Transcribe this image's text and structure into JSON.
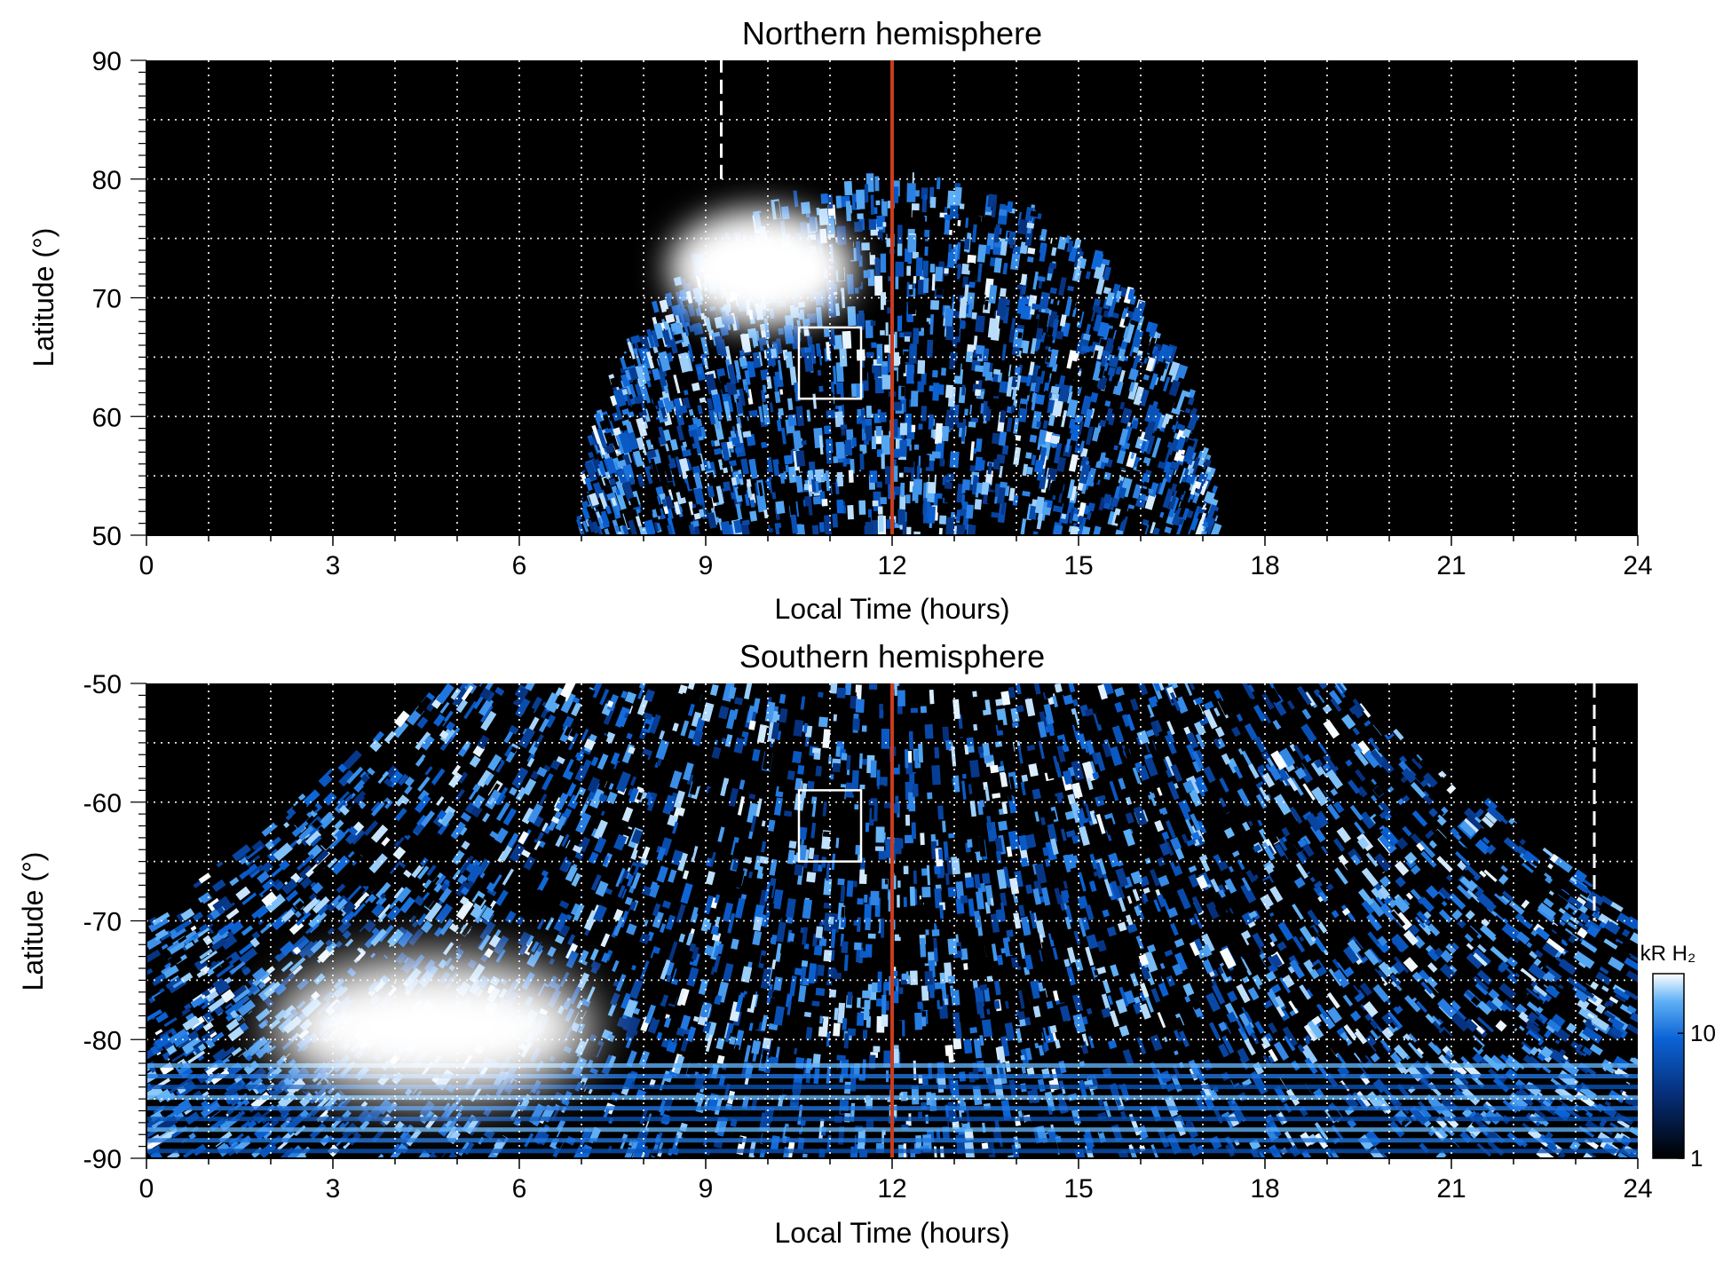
{
  "chart_data": [
    {
      "type": "heatmap",
      "title": "Northern hemisphere",
      "xlabel": "Local Time (hours)",
      "ylabel": "Latitude (°)",
      "xlim": [
        0,
        24
      ],
      "ylim": [
        50,
        90
      ],
      "x_ticks": [
        0,
        3,
        6,
        9,
        12,
        15,
        18,
        21,
        24
      ],
      "y_ticks": [
        50,
        60,
        70,
        80,
        90
      ],
      "grid": true,
      "coverage": {
        "lat_edge": 50,
        "lt_min": 7,
        "lt_max": 17.2,
        "lat_max": 80
      },
      "bright_region": {
        "lt_center": 9.9,
        "lat_center": 72.5,
        "lt_halfwidth": 1.5,
        "lat_halfwidth": 5
      },
      "box": {
        "lt": [
          10.5,
          11.5
        ],
        "lat": [
          61.5,
          67.5
        ]
      },
      "noon_line_lt": 12,
      "dashed_line": {
        "lt": 9.25,
        "lat": [
          80,
          90
        ]
      }
    },
    {
      "type": "heatmap",
      "title": "Southern hemisphere",
      "xlabel": "Local Time (hours)",
      "ylabel": "Latitude (°)",
      "xlim": [
        0,
        24
      ],
      "ylim": [
        -90,
        -50
      ],
      "x_ticks": [
        0,
        3,
        6,
        9,
        12,
        15,
        18,
        21,
        24
      ],
      "y_ticks": [
        -90,
        -80,
        -70,
        -60,
        -50
      ],
      "grid": true,
      "coverage": {
        "lt_min": 0,
        "lt_max": 24,
        "lat_top": -50
      },
      "bright_region": {
        "lt_center": 4.6,
        "lat_center": -79,
        "lt_halfwidth": 2.6,
        "lat_halfwidth": 6
      },
      "box": {
        "lt": [
          10.5,
          11.5
        ],
        "lat": [
          -59,
          -65
        ]
      },
      "noon_line_lt": 12,
      "dashed_line": {
        "lt": 23.3,
        "lat": [
          -50,
          -70
        ]
      },
      "colorbar": {
        "label": "kR H₂",
        "ticks": [
          1,
          10
        ],
        "scale": "log",
        "range": [
          1,
          30
        ]
      }
    }
  ],
  "colors": {
    "noon_line": "#c83c1e",
    "low": "#000000",
    "mid": "#0b63d6",
    "high": "#ffffff"
  }
}
